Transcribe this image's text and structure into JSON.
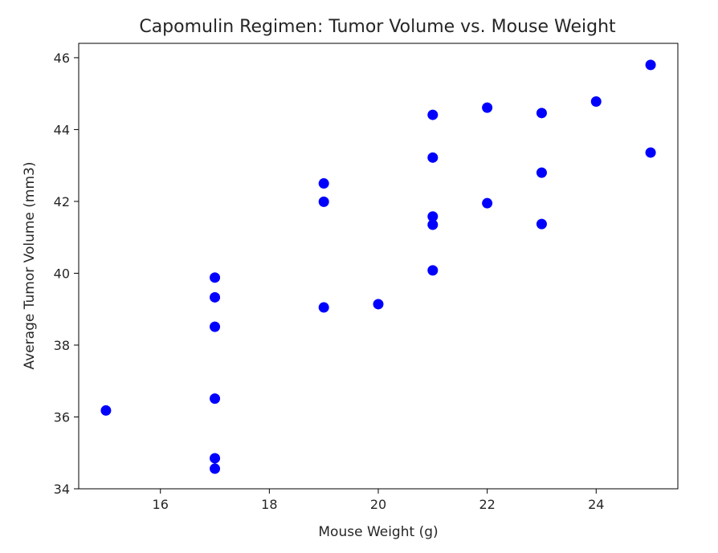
{
  "chart_data": {
    "type": "scatter",
    "title": "Capomulin Regimen: Tumor Volume vs. Mouse Weight",
    "xlabel": "Mouse Weight (g)",
    "ylabel": "Average Tumor Volume (mm3)",
    "xlim": [
      14.5,
      25.5
    ],
    "ylim": [
      34,
      46.4
    ],
    "xticks": [
      16,
      18,
      20,
      22,
      24
    ],
    "yticks": [
      34,
      36,
      38,
      40,
      42,
      44,
      46
    ],
    "grid": false,
    "marker_color": "#0000ff",
    "series": [
      {
        "name": "Capomulin",
        "points": [
          {
            "x": 15,
            "y": 36.18
          },
          {
            "x": 17,
            "y": 39.88
          },
          {
            "x": 17,
            "y": 39.33
          },
          {
            "x": 17,
            "y": 38.51
          },
          {
            "x": 17,
            "y": 36.51
          },
          {
            "x": 17,
            "y": 34.85
          },
          {
            "x": 17,
            "y": 34.56
          },
          {
            "x": 19,
            "y": 42.5
          },
          {
            "x": 19,
            "y": 41.99
          },
          {
            "x": 19,
            "y": 39.05
          },
          {
            "x": 20,
            "y": 39.14
          },
          {
            "x": 21,
            "y": 44.41
          },
          {
            "x": 21,
            "y": 43.22
          },
          {
            "x": 21,
            "y": 41.58
          },
          {
            "x": 21,
            "y": 41.35
          },
          {
            "x": 21,
            "y": 40.08
          },
          {
            "x": 22,
            "y": 44.61
          },
          {
            "x": 22,
            "y": 41.95
          },
          {
            "x": 23,
            "y": 44.46
          },
          {
            "x": 23,
            "y": 42.8
          },
          {
            "x": 23,
            "y": 41.37
          },
          {
            "x": 24,
            "y": 44.78
          },
          {
            "x": 25,
            "y": 45.8
          },
          {
            "x": 25,
            "y": 43.36
          }
        ]
      }
    ]
  }
}
